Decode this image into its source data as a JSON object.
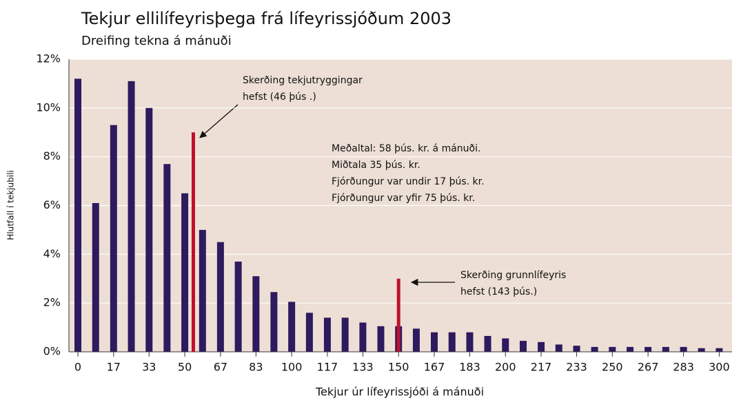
{
  "chart_data": {
    "type": "bar",
    "title": "Tekjur ellilífeyrisþega frá lífeyrissjóðum 2003",
    "subtitle": "Dreifing tekna á mánuði",
    "x_label": "Tekjur úr lífeyrissjóði á mánuði",
    "y_label": "Hlutfall í tekjubili",
    "x": [
      0,
      8.3,
      16.7,
      25,
      33.3,
      41.7,
      50,
      58.3,
      66.7,
      75,
      83.3,
      91.7,
      100,
      108.3,
      116.7,
      125,
      133.3,
      141.7,
      150,
      158.3,
      166.7,
      175,
      183.3,
      191.7,
      200,
      208.3,
      216.7,
      225,
      233.3,
      241.7,
      250,
      258.3,
      266.7,
      275,
      283.3,
      291.7,
      300
    ],
    "values": [
      11.2,
      6.1,
      9.3,
      11.1,
      10.0,
      7.7,
      6.5,
      5.0,
      4.5,
      3.7,
      3.1,
      2.45,
      2.05,
      1.6,
      1.4,
      1.4,
      1.2,
      1.05,
      1.05,
      0.95,
      0.8,
      0.8,
      0.8,
      0.65,
      0.55,
      0.45,
      0.4,
      0.3,
      0.25,
      0.2,
      0.2,
      0.2,
      0.2,
      0.2,
      0.2,
      0.15,
      0.15
    ],
    "color": "#2e1a5e",
    "xlim": [
      -4.2,
      306
    ],
    "xticks": [
      0,
      {
        "value": 16.7,
        "label": "17"
      },
      {
        "value": 33.3,
        "label": "33"
      },
      50,
      {
        "value": 66.7,
        "label": "67"
      },
      {
        "value": 83.3,
        "label": "83"
      },
      100,
      {
        "value": 116.7,
        "label": "117"
      },
      {
        "value": 133.3,
        "label": "133"
      },
      150,
      {
        "value": 166.7,
        "label": "167"
      },
      {
        "value": 183.3,
        "label": "183"
      },
      200,
      {
        "value": 216.7,
        "label": "217"
      },
      {
        "value": 233.3,
        "label": "233"
      },
      250,
      {
        "value": 266.7,
        "label": "267"
      },
      {
        "value": 283.3,
        "label": "283"
      },
      300
    ],
    "ylim": [
      0,
      12
    ],
    "yticks": [
      {
        "value": 0,
        "label": "0%"
      },
      {
        "value": 2,
        "label": "2%"
      },
      {
        "value": 4,
        "label": "4%"
      },
      {
        "value": 6,
        "label": "6%"
      },
      {
        "value": 8,
        "label": "8%"
      },
      {
        "value": 10,
        "label": "10%"
      },
      {
        "value": 12,
        "label": "12%"
      }
    ],
    "grid": true,
    "markers": [
      {
        "x": 54,
        "y": 9,
        "color": "#c0102c"
      },
      {
        "x": 150,
        "y": 3,
        "color": "#c0102c"
      }
    ],
    "annotations": [
      {
        "lines": [
          "Skerðing tekjutryggingar",
          "hefst (46 þús .)"
        ]
      },
      {
        "lines": [
          "Meðaltal: 58 þús. kr. á mánuði.",
          "Miðtala 35 þús. kr.",
          "Fjórðungur var undir 17 þús. kr.",
          "Fjórðungur var yfir 75 þús. kr."
        ]
      },
      {
        "lines": [
          "Skerðing grunnlífeyris",
          "hefst (143 þús.)"
        ]
      }
    ]
  }
}
